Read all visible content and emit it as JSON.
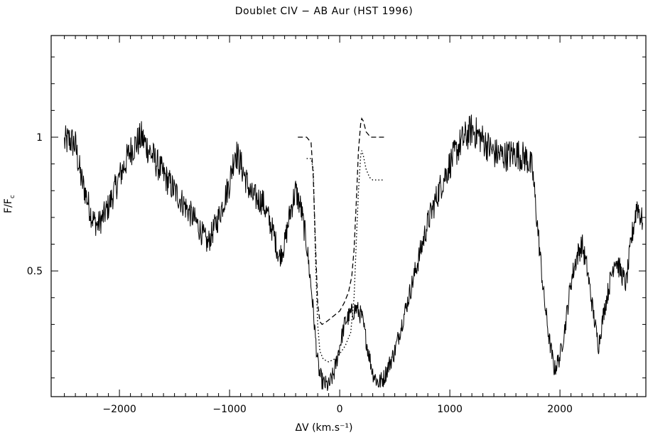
{
  "chart_data": {
    "type": "line",
    "title": "Doublet CIV − AB Aur (HST 1996)",
    "xlabel": "ΔV (km.s⁻¹)",
    "ylabel_main": "F/F",
    "ylabel_sub": "c",
    "xlim": [
      -2620,
      2780
    ],
    "ylim": [
      0.03,
      1.38
    ],
    "x_ticks": [
      -2000,
      -1000,
      0,
      1000,
      2000
    ],
    "x_tick_labels": [
      "−2000",
      "−1000",
      "0",
      "1000",
      "2000"
    ],
    "y_ticks": [
      0.5,
      1
    ],
    "y_tick_labels": [
      "0.5",
      "1"
    ],
    "grid": false,
    "series": [
      {
        "style": "solid",
        "x": [
          -2500,
          -2450,
          -2400,
          -2350,
          -2300,
          -2250,
          -2200,
          -2150,
          -2100,
          -2000,
          -1900,
          -1800,
          -1700,
          -1600,
          -1500,
          -1400,
          -1300,
          -1200,
          -1100,
          -1000,
          -950,
          -900,
          -850,
          -800,
          -700,
          -600,
          -550,
          -500,
          -450,
          -400,
          -350,
          -300,
          -250,
          -220,
          -200,
          -180,
          -150,
          -100,
          -50,
          0,
          50,
          100,
          150,
          200,
          250,
          300,
          350,
          400,
          500,
          600,
          700,
          800,
          900,
          1000,
          1100,
          1200,
          1300,
          1400,
          1500,
          1600,
          1700,
          1750,
          1800,
          1850,
          1900,
          1950,
          2000,
          2050,
          2100,
          2150,
          2200,
          2250,
          2300,
          2350,
          2400,
          2450,
          2500,
          2550,
          2600,
          2650,
          2700,
          2750
        ],
        "y": [
          0.98,
          0.99,
          0.97,
          0.85,
          0.78,
          0.7,
          0.67,
          0.7,
          0.74,
          0.85,
          0.95,
          1.0,
          0.93,
          0.86,
          0.8,
          0.74,
          0.68,
          0.6,
          0.7,
          0.83,
          0.95,
          0.9,
          0.84,
          0.78,
          0.76,
          0.64,
          0.55,
          0.6,
          0.72,
          0.8,
          0.73,
          0.6,
          0.4,
          0.25,
          0.16,
          0.11,
          0.08,
          0.07,
          0.12,
          0.22,
          0.31,
          0.34,
          0.36,
          0.33,
          0.22,
          0.12,
          0.08,
          0.1,
          0.2,
          0.36,
          0.52,
          0.68,
          0.8,
          0.9,
          0.98,
          1.03,
          0.99,
          0.94,
          0.93,
          0.94,
          0.92,
          0.88,
          0.65,
          0.42,
          0.25,
          0.13,
          0.18,
          0.3,
          0.46,
          0.55,
          0.6,
          0.5,
          0.35,
          0.22,
          0.35,
          0.45,
          0.55,
          0.5,
          0.45,
          0.62,
          0.75,
          0.68
        ]
      },
      {
        "style": "dashed",
        "x": [
          -380,
          -300,
          -260,
          -240,
          -220,
          -200,
          -180,
          -160,
          -120,
          -60,
          0,
          40,
          80,
          110,
          130,
          150,
          170,
          190,
          200,
          215,
          240,
          280,
          320,
          360,
          420
        ],
        "y": [
          1.0,
          1.0,
          0.98,
          0.85,
          0.6,
          0.38,
          0.31,
          0.3,
          0.31,
          0.33,
          0.35,
          0.38,
          0.42,
          0.48,
          0.58,
          0.75,
          0.95,
          1.05,
          1.07,
          1.06,
          1.02,
          1.0,
          1.0,
          1.0,
          1.0
        ]
      },
      {
        "style": "dotted",
        "x": [
          -300,
          -260,
          -240,
          -220,
          -200,
          -180,
          -150,
          -100,
          -50,
          0,
          50,
          100,
          130,
          150,
          170,
          190,
          200,
          215,
          240,
          270,
          300,
          350,
          400
        ],
        "y": [
          0.92,
          0.92,
          0.88,
          0.55,
          0.3,
          0.2,
          0.17,
          0.16,
          0.17,
          0.19,
          0.22,
          0.27,
          0.4,
          0.6,
          0.8,
          0.93,
          0.95,
          0.93,
          0.88,
          0.85,
          0.84,
          0.84,
          0.84
        ]
      }
    ]
  }
}
